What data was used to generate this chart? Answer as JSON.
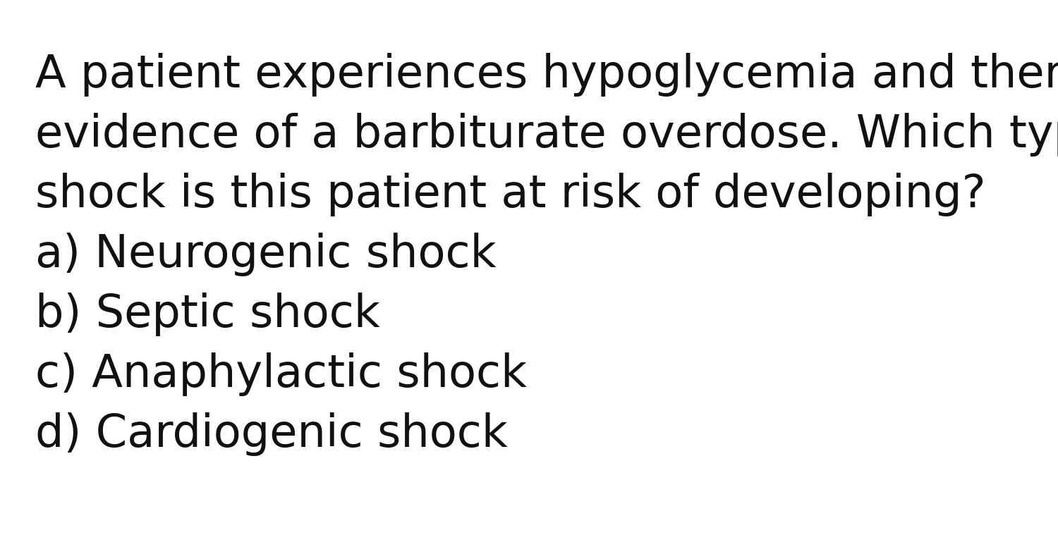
{
  "background_color": "#ffffff",
  "text_color": "#111111",
  "question_lines": [
    "A patient experiences hypoglycemia and there is",
    "evidence of a barbiturate overdose. Which type of",
    "shock is this patient at risk of developing?"
  ],
  "options": [
    "a) Neurogenic shock",
    "b) Septic shock",
    "c) Anaphylactic shock",
    "d) Cardiogenic shock"
  ],
  "question_fontsize": 46,
  "option_fontsize": 46,
  "font_family": "DejaVu Sans",
  "fig_width": 15.0,
  "fig_height": 7.76,
  "dpi": 100
}
